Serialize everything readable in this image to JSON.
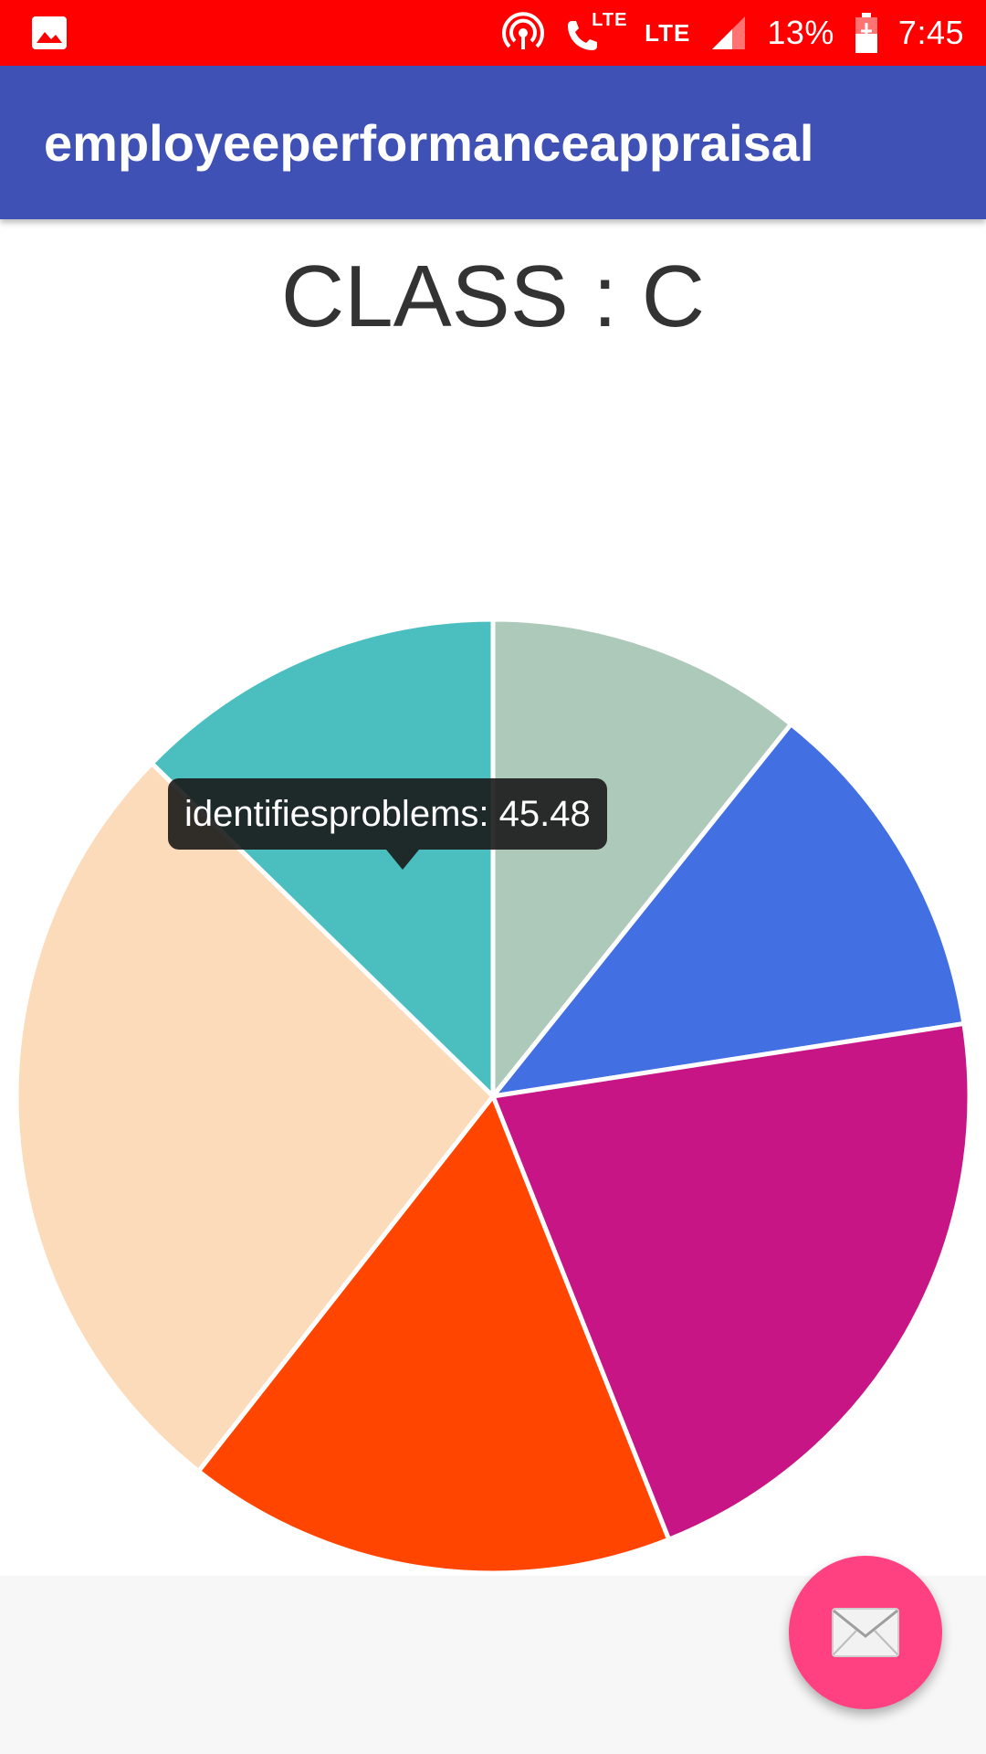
{
  "status_bar": {
    "battery_percent": "13%",
    "time": "7:45",
    "lte_call_label": "LTE",
    "lte_label": "LTE",
    "icons": [
      "image-icon",
      "hotspot-icon",
      "call-lte-icon",
      "lte-icon",
      "signal-icon",
      "battery-charging-icon"
    ]
  },
  "app_bar": {
    "title": "employeeperformanceappraisal"
  },
  "main": {
    "class_label": "CLASS : C"
  },
  "tooltip": {
    "text": "identifiesproblems: 45.48"
  },
  "fab": {
    "icon": "email-icon"
  },
  "colors": {
    "status_bar": "#ff0000",
    "app_bar": "#3f51b5",
    "fab": "#ff4081"
  },
  "chart_data": {
    "type": "pie",
    "slices": [
      {
        "name": "",
        "color": "#adc9b9",
        "value": 38.5
      },
      {
        "name": "",
        "color": "#4270e2",
        "value": 42.3
      },
      {
        "name": "",
        "color": "#c71585",
        "value": 76.7
      },
      {
        "name": "",
        "color": "#ff4500",
        "value": 59.5
      },
      {
        "name": "",
        "color": "#fcdbbb",
        "value": 95.6
      },
      {
        "name": "identifiesproblems",
        "color": "#4bbfbf",
        "value": 45.48
      }
    ],
    "highlighted": "identifiesproblems"
  }
}
